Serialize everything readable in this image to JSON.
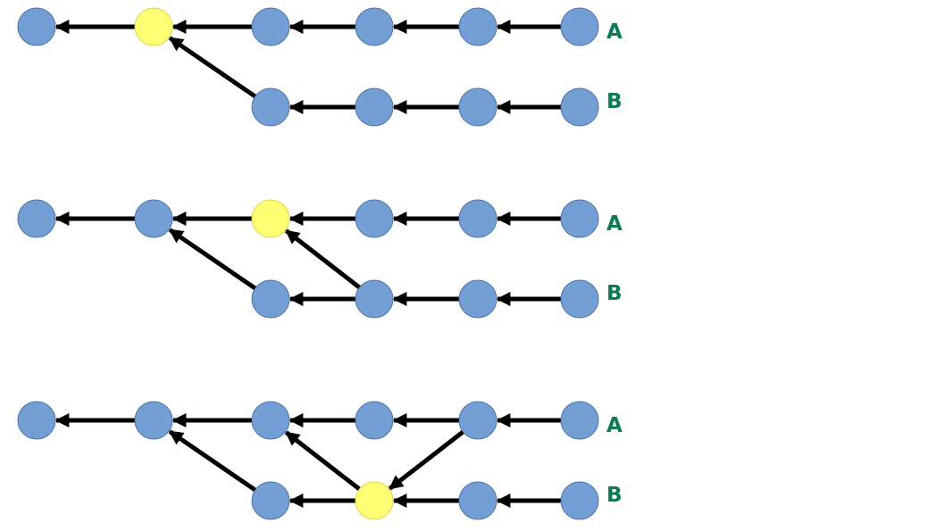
{
  "colors": {
    "background": "#ffffff",
    "commit_fill": "#739fd4",
    "commit_stroke": "#4f74a8",
    "merge_base_fill": "#ffff73",
    "merge_base_stroke": "#d9d950",
    "edge": "#000000",
    "label": "#0b7a57"
  },
  "panels": [
    {
      "branches": [
        {
          "label": "A"
        },
        {
          "label": "B"
        }
      ],
      "nodes": [
        {
          "id": "a1",
          "row": 0,
          "col": 0
        },
        {
          "id": "a2",
          "row": 0,
          "col": 1,
          "highlight": true
        },
        {
          "id": "a3",
          "row": 0,
          "col": 2
        },
        {
          "id": "a4",
          "row": 0,
          "col": 3
        },
        {
          "id": "a5",
          "row": 0,
          "col": 4
        },
        {
          "id": "a6",
          "row": 0,
          "col": 5
        },
        {
          "id": "b3",
          "row": 1,
          "col": 2
        },
        {
          "id": "b4",
          "row": 1,
          "col": 3
        },
        {
          "id": "b5",
          "row": 1,
          "col": 4
        },
        {
          "id": "b6",
          "row": 1,
          "col": 5
        }
      ],
      "edges": [
        {
          "from": "a2",
          "to": "a1"
        },
        {
          "from": "a3",
          "to": "a2"
        },
        {
          "from": "a4",
          "to": "a3"
        },
        {
          "from": "a5",
          "to": "a4"
        },
        {
          "from": "a6",
          "to": "a5"
        },
        {
          "from": "b3",
          "to": "a2"
        },
        {
          "from": "b4",
          "to": "b3"
        },
        {
          "from": "b5",
          "to": "b4"
        },
        {
          "from": "b6",
          "to": "b5"
        }
      ]
    },
    {
      "branches": [
        {
          "label": "A"
        },
        {
          "label": "B"
        }
      ],
      "nodes": [
        {
          "id": "a1",
          "row": 0,
          "col": 0
        },
        {
          "id": "a2",
          "row": 0,
          "col": 1
        },
        {
          "id": "a3",
          "row": 0,
          "col": 2,
          "highlight": true
        },
        {
          "id": "a4",
          "row": 0,
          "col": 3
        },
        {
          "id": "a5",
          "row": 0,
          "col": 4
        },
        {
          "id": "a6",
          "row": 0,
          "col": 5
        },
        {
          "id": "b3",
          "row": 1,
          "col": 2
        },
        {
          "id": "b4",
          "row": 1,
          "col": 3
        },
        {
          "id": "b5",
          "row": 1,
          "col": 4
        },
        {
          "id": "b6",
          "row": 1,
          "col": 5
        }
      ],
      "edges": [
        {
          "from": "a2",
          "to": "a1"
        },
        {
          "from": "a3",
          "to": "a2"
        },
        {
          "from": "a4",
          "to": "a3"
        },
        {
          "from": "a5",
          "to": "a4"
        },
        {
          "from": "a6",
          "to": "a5"
        },
        {
          "from": "b3",
          "to": "a2"
        },
        {
          "from": "b4",
          "to": "b3"
        },
        {
          "from": "b4",
          "to": "a3"
        },
        {
          "from": "b5",
          "to": "b4"
        },
        {
          "from": "b6",
          "to": "b5"
        }
      ]
    },
    {
      "branches": [
        {
          "label": "A"
        },
        {
          "label": "B"
        }
      ],
      "nodes": [
        {
          "id": "a1",
          "row": 0,
          "col": 0
        },
        {
          "id": "a2",
          "row": 0,
          "col": 1
        },
        {
          "id": "a3",
          "row": 0,
          "col": 2
        },
        {
          "id": "a4",
          "row": 0,
          "col": 3
        },
        {
          "id": "a5",
          "row": 0,
          "col": 4
        },
        {
          "id": "a6",
          "row": 0,
          "col": 5
        },
        {
          "id": "b3",
          "row": 1,
          "col": 2
        },
        {
          "id": "b4",
          "row": 1,
          "col": 3,
          "highlight": true
        },
        {
          "id": "b5",
          "row": 1,
          "col": 4
        },
        {
          "id": "b6",
          "row": 1,
          "col": 5
        }
      ],
      "edges": [
        {
          "from": "a2",
          "to": "a1"
        },
        {
          "from": "a3",
          "to": "a2"
        },
        {
          "from": "a4",
          "to": "a3"
        },
        {
          "from": "a5",
          "to": "a4"
        },
        {
          "from": "a6",
          "to": "a5"
        },
        {
          "from": "b3",
          "to": "a2"
        },
        {
          "from": "b4",
          "to": "b3"
        },
        {
          "from": "b4",
          "to": "a3"
        },
        {
          "from": "a5",
          "to": "b4"
        },
        {
          "from": "b5",
          "to": "b4"
        },
        {
          "from": "b6",
          "to": "b5"
        }
      ]
    }
  ]
}
